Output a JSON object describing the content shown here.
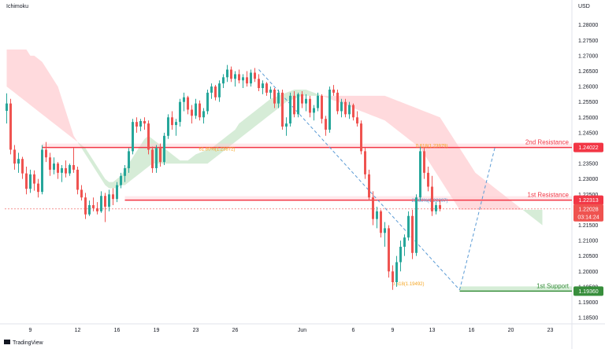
{
  "header": {
    "indicator_label": "Ichimoku",
    "currency_label": "USD"
  },
  "footer": {
    "logo_text": "TradingView"
  },
  "colors": {
    "bull": "#26a69a",
    "bear": "#ef5350",
    "cloud_bull": "#c8e6c9",
    "cloud_bear": "#ffcdd2",
    "resistance": "#f23645",
    "support": "#388e3c",
    "fib_text": "#f5a623",
    "fib_line": "#5b9bd5"
  },
  "chart_data": {
    "type": "candlestick",
    "title": "",
    "ylim": [
      1.184,
      1.284
    ],
    "y_ticks": [
      1.28,
      1.275,
      1.27,
      1.265,
      1.26,
      1.255,
      1.25,
      1.245,
      1.24,
      1.235,
      1.23,
      1.225,
      1.22,
      1.215,
      1.21,
      1.205,
      1.2,
      1.195,
      1.19,
      1.185
    ],
    "y_tick_labels": [
      "1.28000",
      "1.27500",
      "1.27000",
      "1.26500",
      "1.26000",
      "1.25500",
      "1.25000",
      "1.24500",
      "1.24000",
      "1.23500",
      "1.23000",
      "1.22500",
      "1.22000",
      "1.21500",
      "1.21000",
      "1.20500",
      "1.20000",
      "1.19500",
      "1.19000",
      "1.18500"
    ],
    "x_ticks": [
      {
        "label": "9",
        "index": 6
      },
      {
        "label": "12",
        "index": 18
      },
      {
        "label": "16",
        "index": 28
      },
      {
        "label": "19",
        "index": 38
      },
      {
        "label": "23",
        "index": 48
      },
      {
        "label": "26",
        "index": 58
      },
      {
        "label": "Jun",
        "index": 75
      },
      {
        "label": "6",
        "index": 88
      },
      {
        "label": "9",
        "index": 98
      },
      {
        "label": "13",
        "index": 108
      },
      {
        "label": "16",
        "index": 118
      },
      {
        "label": "20",
        "index": 128
      },
      {
        "label": "23",
        "index": 138
      }
    ],
    "candles": [
      [
        1.2521,
        1.2578,
        1.248,
        1.2545
      ],
      [
        1.2545,
        1.256,
        1.238,
        1.2395
      ],
      [
        1.2395,
        1.241,
        1.233,
        1.235
      ],
      [
        1.235,
        1.2385,
        1.232,
        1.2365
      ],
      [
        1.2365,
        1.2372,
        1.23,
        1.2318
      ],
      [
        1.2318,
        1.234,
        1.225,
        1.2268
      ],
      [
        1.2268,
        1.233,
        1.2255,
        1.2315
      ],
      [
        1.2315,
        1.2328,
        1.2262,
        1.2285
      ],
      [
        1.2285,
        1.23,
        1.224,
        1.2258
      ],
      [
        1.2258,
        1.241,
        1.225,
        1.2395
      ],
      [
        1.2395,
        1.242,
        1.2355,
        1.237
      ],
      [
        1.237,
        1.2385,
        1.231,
        1.233
      ],
      [
        1.233,
        1.237,
        1.2315,
        1.235
      ],
      [
        1.235,
        1.2355,
        1.23,
        1.232
      ],
      [
        1.232,
        1.2345,
        1.229,
        1.2335
      ],
      [
        1.2335,
        1.236,
        1.2305,
        1.2318
      ],
      [
        1.2318,
        1.235,
        1.231,
        1.2345
      ],
      [
        1.2345,
        1.24,
        1.232,
        1.233
      ],
      [
        1.233,
        1.234,
        1.225,
        1.2265
      ],
      [
        1.2265,
        1.228,
        1.223,
        1.224
      ],
      [
        1.224,
        1.2255,
        1.217,
        1.2185
      ],
      [
        1.2185,
        1.223,
        1.218,
        1.2215
      ],
      [
        1.2215,
        1.224,
        1.2195,
        1.2205
      ],
      [
        1.2205,
        1.2225,
        1.2185,
        1.2195
      ],
      [
        1.2195,
        1.226,
        1.219,
        1.2245
      ],
      [
        1.2245,
        1.2255,
        1.216,
        1.221
      ],
      [
        1.221,
        1.2265,
        1.2195,
        1.225
      ],
      [
        1.225,
        1.227,
        1.2215,
        1.2235
      ],
      [
        1.2235,
        1.229,
        1.2225,
        1.228
      ],
      [
        1.228,
        1.232,
        1.227,
        1.231
      ],
      [
        1.231,
        1.2345,
        1.229,
        1.2335
      ],
      [
        1.2335,
        1.24,
        1.232,
        1.239
      ],
      [
        1.239,
        1.2495,
        1.238,
        1.2485
      ],
      [
        1.2485,
        1.25,
        1.245,
        1.247
      ],
      [
        1.247,
        1.2495,
        1.2455,
        1.2488
      ],
      [
        1.2488,
        1.25,
        1.246,
        1.248
      ],
      [
        1.248,
        1.249,
        1.238,
        1.2395
      ],
      [
        1.2395,
        1.2405,
        1.232,
        1.2335
      ],
      [
        1.2335,
        1.241,
        1.232,
        1.24
      ],
      [
        1.24,
        1.2415,
        1.234,
        1.2355
      ],
      [
        1.2355,
        1.245,
        1.2345,
        1.244
      ],
      [
        1.244,
        1.251,
        1.243,
        1.25
      ],
      [
        1.25,
        1.252,
        1.246,
        1.2475
      ],
      [
        1.2475,
        1.2495,
        1.244,
        1.2485
      ],
      [
        1.2485,
        1.256,
        1.247,
        1.255
      ],
      [
        1.255,
        1.258,
        1.252,
        1.2565
      ],
      [
        1.2565,
        1.257,
        1.251,
        1.2525
      ],
      [
        1.2525,
        1.254,
        1.248,
        1.2505
      ],
      [
        1.2505,
        1.256,
        1.2495,
        1.2545
      ],
      [
        1.2545,
        1.2555,
        1.249,
        1.25
      ],
      [
        1.25,
        1.253,
        1.248,
        1.252
      ],
      [
        1.252,
        1.259,
        1.251,
        1.258
      ],
      [
        1.258,
        1.261,
        1.256,
        1.26
      ],
      [
        1.26,
        1.2605,
        1.2555,
        1.2565
      ],
      [
        1.2565,
        1.262,
        1.255,
        1.261
      ],
      [
        1.261,
        1.264,
        1.2595,
        1.263
      ],
      [
        1.263,
        1.267,
        1.2615,
        1.2655
      ],
      [
        1.2655,
        1.2665,
        1.2615,
        1.2625
      ],
      [
        1.2625,
        1.265,
        1.26,
        1.264
      ],
      [
        1.264,
        1.2655,
        1.261,
        1.262
      ],
      [
        1.262,
        1.264,
        1.2595,
        1.263
      ],
      [
        1.263,
        1.265,
        1.26,
        1.261
      ],
      [
        1.261,
        1.2655,
        1.26,
        1.2645
      ],
      [
        1.2645,
        1.266,
        1.2615,
        1.2625
      ],
      [
        1.2625,
        1.264,
        1.2585,
        1.2595
      ],
      [
        1.2595,
        1.262,
        1.2575,
        1.261
      ],
      [
        1.261,
        1.2615,
        1.257,
        1.258
      ],
      [
        1.258,
        1.26,
        1.256,
        1.259
      ],
      [
        1.259,
        1.2595,
        1.253,
        1.2545
      ],
      [
        1.2545,
        1.259,
        1.253,
        1.258
      ],
      [
        1.258,
        1.259,
        1.246,
        1.247
      ],
      [
        1.247,
        1.25,
        1.244,
        1.248
      ],
      [
        1.248,
        1.258,
        1.247,
        1.257
      ],
      [
        1.257,
        1.2585,
        1.25,
        1.251
      ],
      [
        1.251,
        1.258,
        1.25,
        1.2575
      ],
      [
        1.2575,
        1.2585,
        1.253,
        1.2545
      ],
      [
        1.2545,
        1.2575,
        1.252,
        1.256
      ],
      [
        1.256,
        1.257,
        1.25,
        1.2515
      ],
      [
        1.2515,
        1.254,
        1.249,
        1.253
      ],
      [
        1.253,
        1.258,
        1.252,
        1.257
      ],
      [
        1.257,
        1.2575,
        1.248,
        1.2495
      ],
      [
        1.2495,
        1.2505,
        1.244,
        1.246
      ],
      [
        1.246,
        1.26,
        1.245,
        1.259
      ],
      [
        1.259,
        1.2605,
        1.257,
        1.258
      ],
      [
        1.258,
        1.259,
        1.251,
        1.252
      ],
      [
        1.252,
        1.256,
        1.25,
        1.255
      ],
      [
        1.255,
        1.256,
        1.25,
        1.251
      ],
      [
        1.251,
        1.255,
        1.2495,
        1.254
      ],
      [
        1.254,
        1.2545,
        1.249,
        1.25
      ],
      [
        1.25,
        1.252,
        1.247,
        1.248
      ],
      [
        1.248,
        1.249,
        1.238,
        1.239
      ],
      [
        1.239,
        1.24,
        1.23,
        1.2315
      ],
      [
        1.2315,
        1.233,
        1.223,
        1.224
      ],
      [
        1.224,
        1.226,
        1.215,
        1.217
      ],
      [
        1.217,
        1.221,
        1.214,
        1.2195
      ],
      [
        1.2195,
        1.22,
        1.211,
        1.2125
      ],
      [
        1.2125,
        1.216,
        1.208,
        1.214
      ],
      [
        1.214,
        1.215,
        1.198,
        1.2
      ],
      [
        1.2,
        1.202,
        1.194,
        1.1965
      ],
      [
        1.1965,
        1.205,
        1.195,
        1.203
      ],
      [
        1.203,
        1.21,
        1.2,
        1.208
      ],
      [
        1.208,
        1.212,
        1.205,
        1.211
      ],
      [
        1.211,
        1.2195,
        1.21,
        1.218
      ],
      [
        1.218,
        1.22,
        1.204,
        1.206
      ],
      [
        1.206,
        1.225,
        1.205,
        1.224
      ],
      [
        1.224,
        1.2405,
        1.223,
        1.239
      ],
      [
        1.239,
        1.24,
        1.23,
        1.232
      ],
      [
        1.232,
        1.234,
        1.226,
        1.2275
      ],
      [
        1.2275,
        1.231,
        1.218,
        1.2195
      ],
      [
        1.2195,
        1.2225,
        1.2185,
        1.2215
      ],
      [
        1.2215,
        1.223,
        1.2195,
        1.2203
      ]
    ],
    "cloud": {
      "start_index": 0,
      "span_a": [
        1.26,
        1.259,
        1.258,
        1.257,
        1.256,
        1.255,
        1.254,
        1.253,
        1.252,
        1.251,
        1.25,
        1.249,
        1.248,
        1.247,
        1.246,
        1.245,
        1.244,
        1.243,
        1.242,
        1.241,
        1.24,
        1.238,
        1.236,
        1.234,
        1.232,
        1.23,
        1.229,
        1.229,
        1.23,
        1.231,
        1.233,
        1.235,
        1.237,
        1.239,
        1.241,
        1.243,
        1.244,
        1.243,
        1.242,
        1.241,
        1.24,
        1.239,
        1.238,
        1.237,
        1.236,
        1.236,
        1.236,
        1.237,
        1.238,
        1.2385,
        1.239,
        1.2395,
        1.24,
        1.241,
        1.242,
        1.243,
        1.244,
        1.245,
        1.246,
        1.248,
        1.249,
        1.25,
        1.251,
        1.252,
        1.253,
        1.254,
        1.255,
        1.256,
        1.2565,
        1.257,
        1.2575,
        1.258,
        1.2585,
        1.259,
        1.259,
        1.259,
        1.259,
        1.2585,
        1.258,
        1.2575,
        1.257,
        1.2565,
        1.256,
        1.2555,
        1.255,
        1.2545,
        1.254,
        1.2535,
        1.253,
        1.2525,
        1.252,
        1.2515,
        1.251,
        1.2505,
        1.25,
        1.2495,
        1.249,
        1.248,
        1.247,
        1.246,
        1.245,
        1.244,
        1.243,
        1.242,
        1.241,
        1.24,
        1.238,
        1.236,
        1.234,
        1.232,
        1.23,
        1.228,
        1.226,
        1.224,
        1.222,
        1.22,
        1.22,
        1.22,
        1.22,
        1.22,
        1.22,
        1.22,
        1.22,
        1.22,
        1.22,
        1.22,
        1.22,
        1.22,
        1.22,
        1.22,
        1.22,
        1.22,
        1.22,
        1.22,
        1.22,
        1.22,
        1.22,
        1.22
      ],
      "span_b": [
        1.272,
        1.272,
        1.272,
        1.272,
        1.272,
        1.272,
        1.27,
        1.27,
        1.269,
        1.268,
        1.266,
        1.264,
        1.262,
        1.26,
        1.256,
        1.252,
        1.248,
        1.244,
        1.242,
        1.24,
        1.238,
        1.236,
        1.234,
        1.232,
        1.23,
        1.228,
        1.227,
        1.227,
        1.227,
        1.228,
        1.228,
        1.229,
        1.23,
        1.231,
        1.232,
        1.233,
        1.234,
        1.235,
        1.235,
        1.235,
        1.235,
        1.235,
        1.235,
        1.235,
        1.235,
        1.235,
        1.235,
        1.235,
        1.235,
        1.235,
        1.235,
        1.235,
        1.236,
        1.237,
        1.238,
        1.239,
        1.24,
        1.241,
        1.242,
        1.243,
        1.244,
        1.245,
        1.246,
        1.247,
        1.248,
        1.249,
        1.25,
        1.251,
        1.252,
        1.253,
        1.254,
        1.255,
        1.2555,
        1.256,
        1.2565,
        1.257,
        1.257,
        1.257,
        1.257,
        1.257,
        1.257,
        1.257,
        1.257,
        1.257,
        1.257,
        1.257,
        1.257,
        1.257,
        1.257,
        1.257,
        1.257,
        1.257,
        1.257,
        1.257,
        1.257,
        1.257,
        1.257,
        1.2565,
        1.256,
        1.2555,
        1.255,
        1.2545,
        1.254,
        1.2535,
        1.253,
        1.2525,
        1.252,
        1.2515,
        1.251,
        1.2505,
        1.25,
        1.248,
        1.246,
        1.244,
        1.242,
        1.24,
        1.238,
        1.236,
        1.234,
        1.232,
        1.231,
        1.23,
        1.229,
        1.228,
        1.227,
        1.226,
        1.225,
        1.224,
        1.223,
        1.222,
        1.221,
        1.22,
        1.219,
        1.218,
        1.217,
        1.216,
        1.215
      ]
    },
    "levels": [
      {
        "name": "2nd Resistance",
        "value": 1.24022,
        "label": "1.24022",
        "start_index": 9
      },
      {
        "name": "1st Resistance",
        "value": 1.22313,
        "label": "1.22313",
        "start_index": 30
      },
      {
        "name": "1st Support",
        "value": 1.1936,
        "label": "1.19360",
        "start_index": 115
      }
    ],
    "current_price": {
      "value": 1.22028,
      "label": "1.22028",
      "countdown": "03:14:24"
    },
    "fib_annotations": [
      {
        "text": "61.80%(1.23872)",
        "value": 1.23872,
        "index": 58
      },
      {
        "text": "0.618(1.23979)",
        "value": 1.23979,
        "index": 112
      },
      {
        "text": "23.60%(1.22207)",
        "value": 1.22207,
        "index": 112
      },
      {
        "text": "0.618(1.19492)",
        "value": 1.19492,
        "index": 106
      }
    ],
    "fib_lines": [
      {
        "from": [
          1.2655,
          64
        ],
        "to": [
          1.194,
          115
        ]
      },
      {
        "from": [
          1.194,
          115
        ],
        "to": [
          1.2405,
          124
        ]
      }
    ]
  }
}
